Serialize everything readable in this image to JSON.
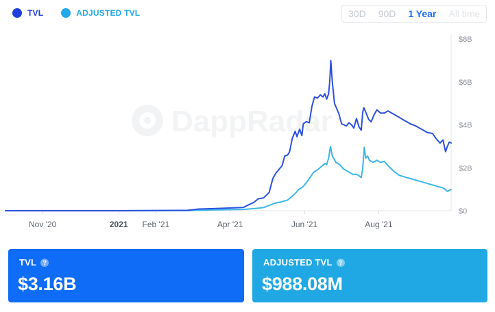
{
  "legend": {
    "items": [
      {
        "label": "TVL",
        "color": "#1e3ee0"
      },
      {
        "label": "ADJUSTED TVL",
        "color": "#23a8e8"
      }
    ]
  },
  "range": {
    "options": [
      "30D",
      "90D",
      "1 Year",
      "All time"
    ],
    "selected": "1 Year"
  },
  "watermark": "DappRadar",
  "chart_data": {
    "type": "line",
    "title": "",
    "xlabel": "",
    "ylabel": "",
    "x_unit": "months since 2020-09-30",
    "xlim": [
      0,
      12
    ],
    "ylim": [
      0,
      8
    ],
    "y_unit": "USD billions",
    "y_ticks": [
      {
        "value": 0,
        "label": "$0"
      },
      {
        "value": 2,
        "label": "$2B"
      },
      {
        "value": 4,
        "label": "$4B"
      },
      {
        "value": 6,
        "label": "$6B"
      },
      {
        "value": 8,
        "label": "$8B"
      }
    ],
    "x_ticks": [
      {
        "value": 1.0,
        "label": "Nov '20",
        "bold": false
      },
      {
        "value": 3.05,
        "label": "2021",
        "bold": true
      },
      {
        "value": 4.05,
        "label": "Feb '21",
        "bold": false
      },
      {
        "value": 6.05,
        "label": "Apr '21",
        "bold": false
      },
      {
        "value": 8.05,
        "label": "Jun '21",
        "bold": false
      },
      {
        "value": 10.05,
        "label": "Aug '21",
        "bold": false
      }
    ],
    "series": [
      {
        "name": "TVL",
        "color": "#2a4fe0",
        "x": [
          0,
          3.0,
          4.9,
          5.2,
          5.6,
          6.4,
          6.7,
          6.8,
          6.95,
          7.1,
          7.2,
          7.28,
          7.33,
          7.4,
          7.45,
          7.52,
          7.6,
          7.65,
          7.72,
          7.8,
          7.85,
          7.92,
          7.98,
          8.02,
          8.1,
          8.18,
          8.25,
          8.32,
          8.4,
          8.48,
          8.55,
          8.6,
          8.65,
          8.7,
          8.73,
          8.76,
          8.8,
          8.86,
          8.92,
          8.98,
          9.05,
          9.12,
          9.18,
          9.25,
          9.32,
          9.38,
          9.45,
          9.52,
          9.58,
          9.62,
          9.65,
          9.7,
          9.78,
          9.85,
          9.92,
          10.0,
          10.1,
          10.2,
          10.3,
          10.45,
          10.6,
          10.75,
          10.9,
          11.05,
          11.2,
          11.35,
          11.5,
          11.6,
          11.7,
          11.78,
          11.85,
          11.9,
          11.95,
          12.0
        ],
        "values": [
          0,
          0,
          0.02,
          0.08,
          0.1,
          0.15,
          0.4,
          0.55,
          0.6,
          0.85,
          1.5,
          1.75,
          1.85,
          2.0,
          2.1,
          2.55,
          2.6,
          2.75,
          3.35,
          3.7,
          3.45,
          3.8,
          3.5,
          4.05,
          4.15,
          4.1,
          4.85,
          5.3,
          5.25,
          5.4,
          5.3,
          5.45,
          5.2,
          5.45,
          6.0,
          7.0,
          6.0,
          5.0,
          4.75,
          4.5,
          4.05,
          4.0,
          3.95,
          4.1,
          4.0,
          3.85,
          4.3,
          3.9,
          3.75,
          4.6,
          4.8,
          4.6,
          4.25,
          4.15,
          4.45,
          4.7,
          4.55,
          4.55,
          4.65,
          4.5,
          4.35,
          4.2,
          4.05,
          3.95,
          3.8,
          3.65,
          3.6,
          3.35,
          3.15,
          3.3,
          2.75,
          3.0,
          3.2,
          3.16
        ]
      },
      {
        "name": "ADJUSTED TVL",
        "color": "#3ab6e6",
        "x": [
          0,
          3.0,
          4.9,
          5.2,
          5.6,
          6.4,
          6.7,
          6.95,
          7.25,
          7.4,
          7.5,
          7.6,
          7.7,
          7.8,
          7.9,
          8.0,
          8.1,
          8.2,
          8.3,
          8.4,
          8.5,
          8.6,
          8.65,
          8.7,
          8.75,
          8.8,
          8.9,
          9.0,
          9.1,
          9.2,
          9.35,
          9.45,
          9.5,
          9.58,
          9.62,
          9.66,
          9.7,
          9.75,
          9.8,
          9.9,
          10.0,
          10.1,
          10.2,
          10.3,
          10.45,
          10.6,
          10.8,
          11.0,
          11.2,
          11.4,
          11.6,
          11.8,
          11.9,
          12.0
        ],
        "values": [
          0,
          0,
          0.01,
          0.02,
          0.04,
          0.06,
          0.1,
          0.15,
          0.35,
          0.4,
          0.45,
          0.5,
          0.65,
          0.8,
          1.0,
          1.1,
          1.3,
          1.55,
          1.8,
          1.9,
          2.05,
          2.2,
          2.15,
          2.45,
          3.0,
          2.55,
          2.25,
          2.15,
          1.95,
          1.85,
          1.7,
          1.7,
          1.65,
          1.55,
          2.0,
          2.95,
          2.45,
          2.55,
          2.35,
          2.25,
          2.35,
          2.25,
          2.3,
          2.1,
          1.85,
          1.65,
          1.55,
          1.45,
          1.35,
          1.25,
          1.15,
          1.05,
          0.9,
          0.99
        ]
      }
    ]
  },
  "cards": {
    "tvl": {
      "label": "TVL",
      "value": "$3.16B",
      "help": "?"
    },
    "adjusted": {
      "label": "ADJUSTED TVL",
      "value": "$988.08M",
      "help": "?"
    }
  }
}
